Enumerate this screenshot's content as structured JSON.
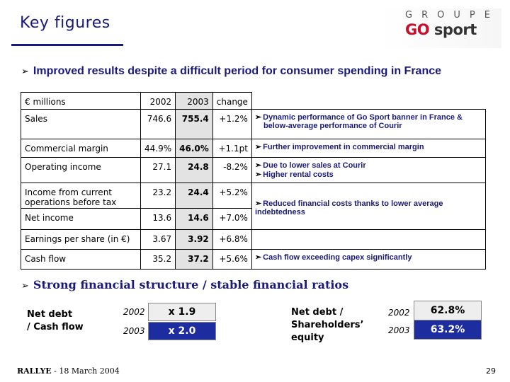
{
  "title": "Key figures",
  "logo": {
    "groupe": "GROUPE",
    "go": "GO",
    "sport": "sport"
  },
  "section1": {
    "heading": "Improved results despite a difficult period for consumer spending in France"
  },
  "table": {
    "headers": {
      "label": "€ millions",
      "y2002": "2002",
      "y2003": "2003",
      "change": "change"
    },
    "rows": [
      {
        "label": "Sales",
        "y2002": "746.6",
        "y2003": "755.4",
        "change": "+1.2%"
      },
      {
        "label": "Commercial margin",
        "y2002": "44.9%",
        "y2003": "46.0%",
        "change": "+1.1pt"
      },
      {
        "label": "Operating income",
        "y2002": "27.1",
        "y2003": "24.8",
        "change": "-8.2%"
      },
      {
        "label": "Income from current operations before tax",
        "y2002": "23.2",
        "y2003": "24.4",
        "change": "+5.2%"
      },
      {
        "label": "Net income",
        "y2002": "13.6",
        "y2003": "14.6",
        "change": "+7.0%"
      },
      {
        "label": "Earnings per share (in €)",
        "y2002": "3.67",
        "y2003": "3.92",
        "change": "+6.8%"
      },
      {
        "label": "Cash flow",
        "y2002": "35.2",
        "y2003": "37.2",
        "change": "+5.6%"
      }
    ],
    "comments": {
      "sales_1": "Dynamic performance of Go Sport banner in France &",
      "sales_2": "below-average performance of Courir",
      "margin": "Further improvement in commercial margin",
      "operating_1": "Due to lower sales at Courir",
      "operating_2": "Higher rental costs",
      "net_income": "Reduced financial costs thanks to lower average indebtedness",
      "cash_flow": "Cash flow exceeding capex significantly"
    }
  },
  "section2": {
    "heading": "Strong financial structure / stable financial ratios"
  },
  "ratios": {
    "net_debt_cash_flow": {
      "label_1": "Net debt",
      "label_2": "/ Cash flow",
      "year1": "2002",
      "value1": "x 1.9",
      "year2": "2003",
      "value2": "x 2.0"
    },
    "net_debt_equity": {
      "label_1": "Net debt /",
      "label_2": "Shareholders’",
      "label_3": "equity",
      "year1": "2002",
      "value1": "62.8%",
      "year2": "2003",
      "value2": "63.2%"
    }
  },
  "footer": {
    "left_bold": "RALLYE",
    "left_rest": " - 18 March 2004",
    "page": "29"
  },
  "colors": {
    "title": "#1a1a7a",
    "dark_box": "#1d2c9e",
    "highlight": "#e3e3e3"
  }
}
